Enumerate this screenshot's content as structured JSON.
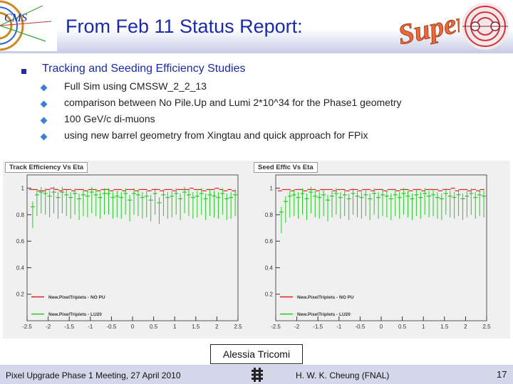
{
  "slide": {
    "title": "From Feb 11 Status Report:",
    "logos": {
      "cms_text": "CMS",
      "super_text": "Super"
    },
    "main_bullet": "Tracking and Seeding Efficiency Studies",
    "sub_bullets": [
      "Full Sim using CMSSW_2_2_13",
      "comparison between No Pile.Up  and Lumi 2*10^34 for the Phase1 geometry",
      "100 GeV/c  di-muons",
      "using new barrel geometry from Xingtau and quick approach for FPix"
    ],
    "author_box": "Alessia Tricomi",
    "footer": {
      "left": "Pixel Upgrade Phase 1 Meeting, 27 April 2010",
      "middle": "H. W. K. Cheung (FNAL)",
      "page": "17"
    }
  },
  "colors": {
    "title": "#1a2aa8",
    "series_red": "#dd2222",
    "series_green": "#22cc22"
  },
  "chart_data": [
    {
      "type": "scatter",
      "title": "Track Efficiency Vs Eta",
      "xlim": [
        -2.5,
        2.5
      ],
      "ylim": [
        0,
        1.1
      ],
      "xticks": [
        "-2.5",
        "-2",
        "-1.5",
        "-1",
        "-0.5",
        "0",
        "0.5",
        "1",
        "1.5",
        "2",
        "2.5"
      ],
      "yticks": [
        "0.2",
        "0.4",
        "0.6",
        "0.8",
        "1"
      ],
      "legend_position": "bottom-left",
      "series": [
        {
          "name": "New.PixelTriplets - NO PU",
          "color": "#dd2222",
          "x": [
            -2.4,
            -2.3,
            -2.2,
            -2.1,
            -2.0,
            -1.9,
            -1.8,
            -1.7,
            -1.6,
            -1.5,
            -1.4,
            -1.3,
            -1.2,
            -1.1,
            -1.0,
            -0.9,
            -0.8,
            -0.7,
            -0.6,
            -0.5,
            -0.4,
            -0.3,
            -0.2,
            -0.1,
            0.0,
            0.1,
            0.2,
            0.3,
            0.4,
            0.5,
            0.6,
            0.7,
            0.8,
            0.9,
            1.0,
            1.1,
            1.2,
            1.3,
            1.4,
            1.5,
            1.6,
            1.7,
            1.8,
            1.9,
            2.0,
            2.1,
            2.2,
            2.3,
            2.4
          ],
          "y": [
            0.99,
            0.99,
            0.98,
            0.98,
            0.99,
            1.0,
            0.99,
            0.98,
            0.99,
            0.99,
            0.98,
            0.99,
            0.99,
            0.98,
            0.99,
            0.99,
            0.98,
            0.99,
            0.99,
            0.98,
            0.99,
            0.99,
            0.98,
            0.99,
            0.99,
            0.98,
            0.99,
            0.99,
            0.98,
            0.99,
            0.99,
            0.98,
            0.99,
            0.99,
            0.98,
            0.99,
            0.99,
            0.99,
            1.0,
            0.99,
            0.99,
            0.98,
            0.99,
            0.99,
            1.0,
            0.99,
            0.98,
            0.99,
            0.98
          ]
        },
        {
          "name": "New.PixelTriplets - LU20",
          "color": "#22cc22",
          "x": [
            -2.4,
            -2.3,
            -2.2,
            -2.1,
            -2.0,
            -1.9,
            -1.8,
            -1.7,
            -1.6,
            -1.5,
            -1.4,
            -1.3,
            -1.2,
            -1.1,
            -1.0,
            -0.9,
            -0.8,
            -0.7,
            -0.6,
            -0.5,
            -0.4,
            -0.3,
            -0.2,
            -0.1,
            0.0,
            0.1,
            0.2,
            0.3,
            0.4,
            0.5,
            0.6,
            0.7,
            0.8,
            0.9,
            1.0,
            1.1,
            1.2,
            1.3,
            1.4,
            1.5,
            1.6,
            1.7,
            1.8,
            1.9,
            2.0,
            2.1,
            2.2,
            2.3,
            2.4
          ],
          "y": [
            0.86,
            0.95,
            0.97,
            0.96,
            0.94,
            0.97,
            0.93,
            0.97,
            0.95,
            0.93,
            0.96,
            0.92,
            0.95,
            0.94,
            0.97,
            0.95,
            0.93,
            0.96,
            0.96,
            0.93,
            0.94,
            0.93,
            0.96,
            0.91,
            0.96,
            0.95,
            0.93,
            0.94,
            0.91,
            0.96,
            0.89,
            0.95,
            0.93,
            0.94,
            0.96,
            0.92,
            0.97,
            0.95,
            0.93,
            0.94,
            0.96,
            0.92,
            0.95,
            0.94,
            0.93,
            0.96,
            0.92,
            0.93,
            0.95
          ]
        }
      ]
    },
    {
      "type": "scatter",
      "title": "Seed Effic Vs Eta",
      "xlim": [
        -2.5,
        2.5
      ],
      "ylim": [
        0,
        1.1
      ],
      "xticks": [
        "-2.5",
        "-2",
        "-1.5",
        "-1",
        "-0.5",
        "0",
        "0.5",
        "1",
        "1.5",
        "2",
        "2.5"
      ],
      "yticks": [
        "0.2",
        "0.4",
        "0.6",
        "0.8",
        "1"
      ],
      "legend_position": "bottom-left",
      "series": [
        {
          "name": "New.PixelTriplets - NO PU",
          "color": "#dd2222",
          "x": [
            -2.4,
            -2.3,
            -2.2,
            -2.1,
            -2.0,
            -1.9,
            -1.8,
            -1.7,
            -1.6,
            -1.5,
            -1.4,
            -1.3,
            -1.2,
            -1.1,
            -1.0,
            -0.9,
            -0.8,
            -0.7,
            -0.6,
            -0.5,
            -0.4,
            -0.3,
            -0.2,
            -0.1,
            0.0,
            0.1,
            0.2,
            0.3,
            0.4,
            0.5,
            0.6,
            0.7,
            0.8,
            0.9,
            1.0,
            1.1,
            1.2,
            1.3,
            1.4,
            1.5,
            1.6,
            1.7,
            1.8,
            1.9,
            2.0,
            2.1,
            2.2,
            2.3,
            2.4
          ],
          "y": [
            0.98,
            0.99,
            0.99,
            0.98,
            0.99,
            0.99,
            0.98,
            0.99,
            0.99,
            0.98,
            0.99,
            0.99,
            0.99,
            0.98,
            0.99,
            0.99,
            0.98,
            0.99,
            0.99,
            0.98,
            0.99,
            0.99,
            0.98,
            0.99,
            0.99,
            0.98,
            0.99,
            0.99,
            0.98,
            0.99,
            0.99,
            0.98,
            0.99,
            0.99,
            0.98,
            0.99,
            0.99,
            0.99,
            0.98,
            0.99,
            0.99,
            1.0,
            0.98,
            0.99,
            0.99,
            0.98,
            0.99,
            0.98,
            0.99
          ]
        },
        {
          "name": "New.PixelTriplets - LU20",
          "color": "#22cc22",
          "x": [
            -2.4,
            -2.3,
            -2.2,
            -2.1,
            -2.0,
            -1.9,
            -1.8,
            -1.7,
            -1.6,
            -1.5,
            -1.4,
            -1.3,
            -1.2,
            -1.1,
            -1.0,
            -0.9,
            -0.8,
            -0.7,
            -0.6,
            -0.5,
            -0.4,
            -0.3,
            -0.2,
            -0.1,
            0.0,
            0.1,
            0.2,
            0.3,
            0.4,
            0.5,
            0.6,
            0.7,
            0.8,
            0.9,
            1.0,
            1.1,
            1.2,
            1.3,
            1.4,
            1.5,
            1.6,
            1.7,
            1.8,
            1.9,
            2.0,
            2.1,
            2.2,
            2.3,
            2.4
          ],
          "y": [
            0.82,
            0.9,
            0.94,
            0.95,
            0.93,
            0.96,
            0.92,
            0.97,
            0.94,
            0.93,
            0.95,
            0.91,
            0.94,
            0.96,
            0.93,
            0.95,
            0.92,
            0.96,
            0.94,
            0.93,
            0.95,
            0.92,
            0.96,
            0.93,
            0.95,
            0.94,
            0.92,
            0.95,
            0.93,
            0.96,
            0.94,
            0.92,
            0.95,
            0.93,
            0.96,
            0.94,
            0.95,
            0.93,
            0.92,
            0.96,
            0.94,
            0.93,
            0.95,
            0.92,
            0.94,
            0.96,
            0.93,
            0.95,
            0.94
          ]
        }
      ]
    }
  ]
}
